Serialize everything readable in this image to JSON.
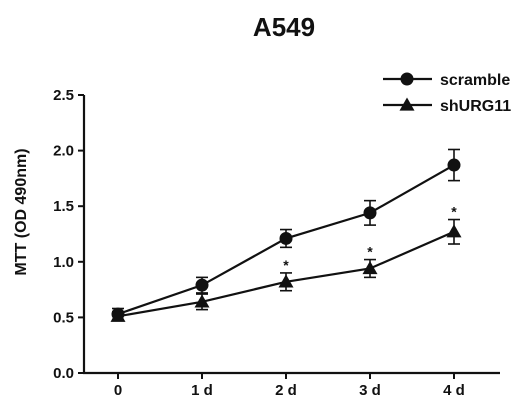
{
  "chart_data": {
    "type": "line",
    "title": "A549",
    "xlabel": "",
    "ylabel": "MTT (OD 490nm)",
    "categories": [
      "0",
      "1 d",
      "2 d",
      "3 d",
      "4 d"
    ],
    "ylim": [
      0.0,
      2.5
    ],
    "yticks": [
      "0.0",
      "0.5",
      "1.0",
      "1.5",
      "2.0",
      "2.5"
    ],
    "legend_position": "top-right",
    "grid": false,
    "series": [
      {
        "name": "scramble",
        "marker": "circle",
        "values": [
          0.53,
          0.79,
          1.21,
          1.44,
          1.87
        ],
        "errors": [
          0.05,
          0.07,
          0.08,
          0.11,
          0.14
        ]
      },
      {
        "name": "shURG11",
        "marker": "triangle",
        "values": [
          0.51,
          0.64,
          0.82,
          0.94,
          1.27
        ],
        "errors": [
          0.04,
          0.07,
          0.08,
          0.08,
          0.11
        ]
      }
    ],
    "annotations": [
      {
        "text": "*",
        "category": "2 d",
        "series": "shURG11"
      },
      {
        "text": "*",
        "category": "3 d",
        "series": "shURG11"
      },
      {
        "text": "*",
        "category": "4 d",
        "series": "shURG11"
      }
    ]
  }
}
